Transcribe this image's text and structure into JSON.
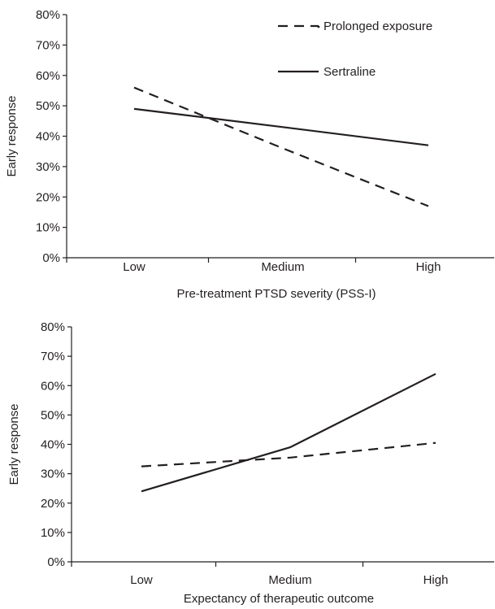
{
  "chart_data": [
    {
      "type": "line",
      "categories": [
        "Low",
        "Medium",
        "High"
      ],
      "xlabel": "Pre-treatment PTSD severity (PSS-I)",
      "ylabel": "Early response",
      "ylim": [
        0,
        80
      ],
      "yticks": [
        "0%",
        "10%",
        "20%",
        "30%",
        "40%",
        "50%",
        "60%",
        "70%",
        "80%"
      ],
      "grid": false,
      "legend_position": "top-right",
      "series": [
        {
          "name": "Prolonged exposure",
          "values": [
            56,
            36,
            17
          ],
          "dash": "dashed"
        },
        {
          "name": "Sertraline",
          "values": [
            49,
            43,
            37
          ],
          "dash": "solid"
        }
      ]
    },
    {
      "type": "line",
      "categories": [
        "Low",
        "Medium",
        "High"
      ],
      "xlabel": "Expectancy of therapeutic outcome",
      "ylabel": "Early response",
      "ylim": [
        0,
        80
      ],
      "yticks": [
        "0%",
        "10%",
        "20%",
        "30%",
        "40%",
        "50%",
        "60%",
        "70%",
        "80%"
      ],
      "grid": false,
      "series": [
        {
          "name": "Prolonged exposure",
          "values": [
            32.5,
            35.5,
            40.5
          ],
          "dash": "dashed"
        },
        {
          "name": "Sertraline",
          "values": [
            24,
            39,
            64
          ],
          "dash": "solid"
        }
      ]
    }
  ]
}
